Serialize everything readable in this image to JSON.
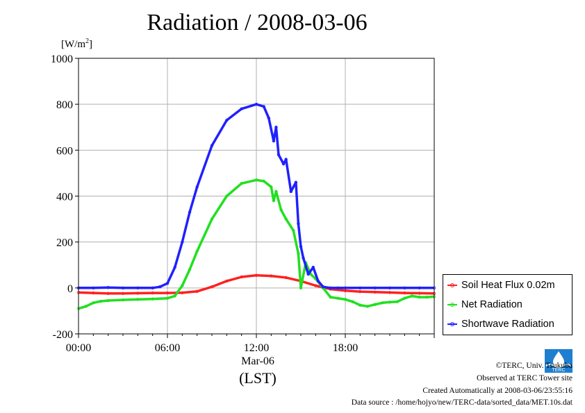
{
  "chart_data": {
    "type": "line",
    "title": "Radiation / 2008-03-06",
    "unit_label": "[W/m",
    "unit_sup": "2",
    "unit_close": "]",
    "ylim": [
      -200,
      1000
    ],
    "yticks": [
      1000,
      800,
      600,
      400,
      200,
      0,
      -200
    ],
    "xlim": [
      0,
      1440
    ],
    "xticks": [
      {
        "minute": 0,
        "label": "00:00"
      },
      {
        "minute": 360,
        "label": "06:00"
      },
      {
        "minute": 720,
        "label": "12:00"
      },
      {
        "minute": 1080,
        "label": "18:00"
      }
    ],
    "xlabel_date": "Mar-06",
    "xlabel": "(LST)",
    "grid": true,
    "legend_position": "right",
    "series": [
      {
        "name": "Soil Heat Flux 0.02m",
        "color": "#ff2020",
        "x": [
          0,
          60,
          120,
          180,
          240,
          300,
          360,
          420,
          480,
          540,
          600,
          660,
          720,
          780,
          840,
          900,
          960,
          1020,
          1080,
          1140,
          1200,
          1260,
          1320,
          1380,
          1440
        ],
        "y": [
          -20,
          -22,
          -24,
          -24,
          -23,
          -22,
          -22,
          -21,
          -15,
          5,
          30,
          48,
          55,
          52,
          45,
          30,
          10,
          -5,
          -12,
          -16,
          -18,
          -20,
          -22,
          -23,
          -24
        ]
      },
      {
        "name": "Net Radiation",
        "color": "#20e020",
        "x": [
          0,
          30,
          60,
          90,
          120,
          180,
          240,
          300,
          360,
          390,
          420,
          450,
          480,
          540,
          600,
          660,
          720,
          750,
          780,
          790,
          800,
          820,
          840,
          870,
          890,
          900,
          920,
          940,
          960,
          990,
          1020,
          1050,
          1080,
          1110,
          1140,
          1170,
          1200,
          1230,
          1260,
          1290,
          1320,
          1350,
          1380,
          1410,
          1440
        ],
        "y": [
          -90,
          -80,
          -65,
          -58,
          -55,
          -52,
          -50,
          -48,
          -45,
          -35,
          10,
          80,
          160,
          300,
          400,
          455,
          470,
          465,
          440,
          380,
          420,
          340,
          300,
          250,
          150,
          0,
          110,
          60,
          40,
          0,
          -40,
          -45,
          -50,
          -60,
          -75,
          -80,
          -72,
          -65,
          -62,
          -60,
          -45,
          -35,
          -40,
          -40,
          -38
        ]
      },
      {
        "name": "Shortwave Radiation",
        "color": "#2020ff",
        "x": [
          0,
          60,
          120,
          180,
          240,
          300,
          330,
          360,
          390,
          420,
          450,
          480,
          540,
          600,
          660,
          720,
          750,
          770,
          790,
          800,
          810,
          830,
          840,
          860,
          880,
          890,
          900,
          910,
          930,
          950,
          970,
          990,
          1020,
          1050,
          1080,
          1140,
          1200,
          1260,
          1320,
          1380,
          1440
        ],
        "y": [
          0,
          0,
          2,
          0,
          0,
          0,
          5,
          20,
          90,
          200,
          330,
          440,
          620,
          730,
          780,
          800,
          790,
          740,
          640,
          700,
          580,
          540,
          560,
          420,
          460,
          280,
          180,
          130,
          60,
          90,
          30,
          5,
          0,
          0,
          0,
          0,
          0,
          0,
          0,
          0,
          0
        ]
      }
    ]
  },
  "footer": {
    "copyright": "©TERC, Univ. Tsukuba",
    "observed": "Observed at TERC Tower site",
    "created": "Created Automatically at 2008-03-06/23:55:16",
    "source": "Data source : /home/hojyo/new/TERC-data/sorted_data/MET.10s.dat"
  },
  "logo_text": "TERC"
}
